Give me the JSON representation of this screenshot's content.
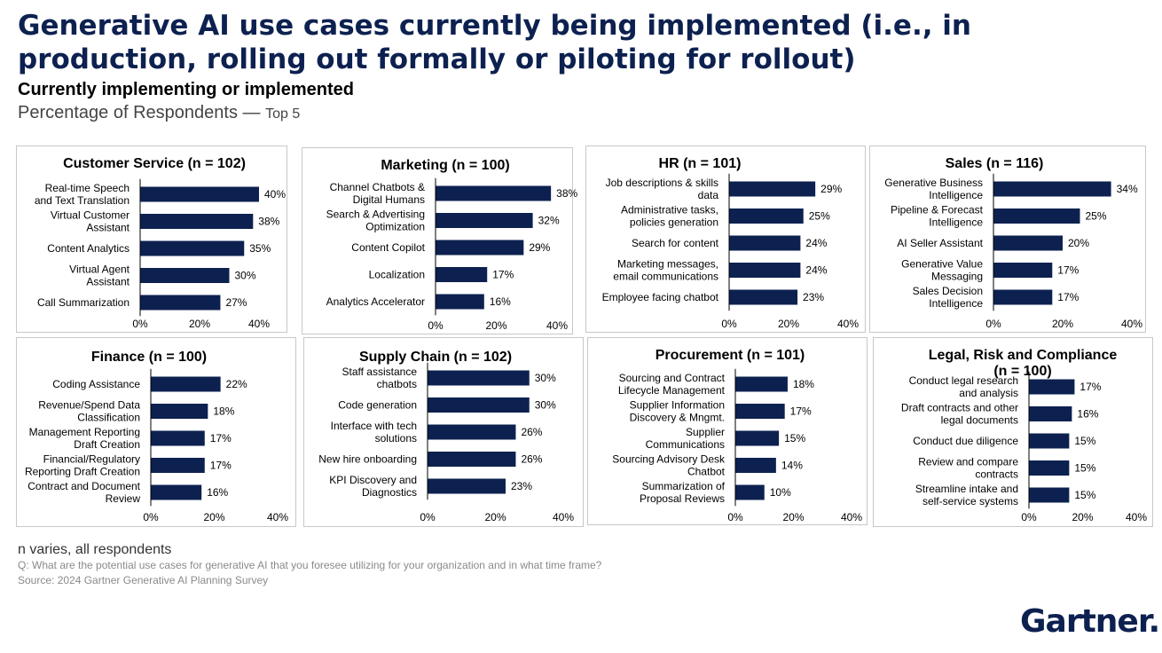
{
  "header": {
    "title": "Generative AI use cases currently being implemented (i.e., in production, rolling out formally or piloting for rollout)",
    "subtitle": "Currently implementing or implemented",
    "measure": "Percentage of Respondents —",
    "measure_suffix": "Top 5"
  },
  "footer": {
    "n_note": "n varies, all respondents",
    "question": "Q: What are the potential use cases for generative AI that you foresee utilizing for your organization and in what time frame?",
    "source": "Source: 2024 Gartner Generative AI Planning Survey"
  },
  "logo": {
    "text": "Gartner",
    "dot": "."
  },
  "colors": {
    "bar": "#0d2150",
    "title": "#0d2150",
    "axis": "#000000"
  },
  "chart_data": [
    {
      "type": "bar",
      "orientation": "horizontal",
      "title": "Customer Service (n = 102)",
      "categories": [
        [
          "Real-time Speech",
          "and Text Translation"
        ],
        [
          "Virtual Customer",
          "Assistant"
        ],
        [
          "Content Analytics"
        ],
        [
          "Virtual Agent",
          "Assistant"
        ],
        [
          "Call Summarization"
        ]
      ],
      "values": [
        40,
        38,
        35,
        30,
        27
      ],
      "value_labels": [
        "40%",
        "38%",
        "35%",
        "30%",
        "27%"
      ],
      "xticks": [
        "0%",
        "20%",
        "40%"
      ],
      "xlim": [
        0,
        40
      ]
    },
    {
      "type": "bar",
      "orientation": "horizontal",
      "title": "Marketing  (n = 100)",
      "categories": [
        [
          "Channel Chatbots &",
          "Digital Humans"
        ],
        [
          "Search & Advertising",
          "Optimization"
        ],
        [
          "Content Copilot"
        ],
        [
          "Localization"
        ],
        [
          "Analytics Accelerator"
        ]
      ],
      "values": [
        38,
        32,
        29,
        17,
        16
      ],
      "value_labels": [
        "38%",
        "32%",
        "29%",
        "17%",
        "16%"
      ],
      "xticks": [
        "0%",
        "20%",
        "40%"
      ],
      "xlim": [
        0,
        40
      ]
    },
    {
      "type": "bar",
      "orientation": "horizontal",
      "title": "HR (n = 101)",
      "categories": [
        [
          "Job descriptions & skills",
          "data"
        ],
        [
          "Administrative tasks,",
          "policies generation"
        ],
        [
          "Search for content"
        ],
        [
          "Marketing messages,",
          "email communications"
        ],
        [
          "Employee facing chatbot"
        ]
      ],
      "values": [
        29,
        25,
        24,
        24,
        23
      ],
      "value_labels": [
        "29%",
        "25%",
        "24%",
        "24%",
        "23%"
      ],
      "xticks": [
        "0%",
        "20%",
        "40%"
      ],
      "xlim": [
        0,
        40
      ]
    },
    {
      "type": "bar",
      "orientation": "horizontal",
      "title": "Sales (n = 116)",
      "categories": [
        [
          "Generative Business",
          "Intelligence"
        ],
        [
          "Pipeline & Forecast",
          "Intelligence"
        ],
        [
          "AI Seller Assistant"
        ],
        [
          "Generative Value",
          "Messaging"
        ],
        [
          "Sales Decision",
          "Intelligence"
        ]
      ],
      "values": [
        34,
        25,
        20,
        17,
        17
      ],
      "value_labels": [
        "34%",
        "25%",
        "20%",
        "17%",
        "17%"
      ],
      "xticks": [
        "0%",
        "20%",
        "40%"
      ],
      "xlim": [
        0,
        40
      ]
    },
    {
      "type": "bar",
      "orientation": "horizontal",
      "title": "Finance (n = 100)",
      "categories": [
        [
          "Coding Assistance"
        ],
        [
          "Revenue/Spend Data",
          "Classification"
        ],
        [
          "Management Reporting",
          "Draft Creation"
        ],
        [
          "Financial/Regulatory",
          "Reporting Draft Creation"
        ],
        [
          "Contract and Document",
          "Review"
        ]
      ],
      "values": [
        22,
        18,
        17,
        17,
        16
      ],
      "value_labels": [
        "22%",
        "18%",
        "17%",
        "17%",
        "16%"
      ],
      "xticks": [
        "0%",
        "20%",
        "40%"
      ],
      "xlim": [
        0,
        40
      ]
    },
    {
      "type": "bar",
      "orientation": "horizontal",
      "title": "Supply Chain (n = 102)",
      "categories": [
        [
          "Staff assistance",
          "chatbots"
        ],
        [
          "Code generation"
        ],
        [
          "Interface with tech",
          "solutions"
        ],
        [
          "New hire onboarding"
        ],
        [
          "KPI Discovery and",
          "Diagnostics"
        ]
      ],
      "values": [
        30,
        30,
        26,
        26,
        23
      ],
      "value_labels": [
        "30%",
        "30%",
        "26%",
        "26%",
        "23%"
      ],
      "xticks": [
        "0%",
        "20%",
        "40%"
      ],
      "xlim": [
        0,
        40
      ]
    },
    {
      "type": "bar",
      "orientation": "horizontal",
      "title": "Procurement (n = 101)",
      "categories": [
        [
          "Sourcing and Contract",
          "Lifecycle Management"
        ],
        [
          "Supplier Information",
          "Discovery & Mngmt."
        ],
        [
          "Supplier",
          "Communications"
        ],
        [
          "Sourcing Advisory Desk",
          "Chatbot"
        ],
        [
          "Summarization of",
          "Proposal Reviews"
        ]
      ],
      "values": [
        18,
        17,
        15,
        14,
        10
      ],
      "value_labels": [
        "18%",
        "17%",
        "15%",
        "14%",
        "10%"
      ],
      "xticks": [
        "0%",
        "20%",
        "40%"
      ],
      "xlim": [
        0,
        40
      ]
    },
    {
      "type": "bar",
      "orientation": "horizontal",
      "title": [
        "Legal, Risk and Compliance",
        "(n = 100)"
      ],
      "categories": [
        [
          "Conduct legal research",
          "and analysis"
        ],
        [
          "Draft contracts and other",
          "legal documents"
        ],
        [
          "Conduct due diligence"
        ],
        [
          "Review and compare",
          "contracts"
        ],
        [
          "Streamline intake and",
          "self-service systems"
        ]
      ],
      "values": [
        17,
        16,
        15,
        15,
        15
      ],
      "value_labels": [
        "17%",
        "16%",
        "15%",
        "15%",
        "15%"
      ],
      "xticks": [
        "0%",
        "20%",
        "40%"
      ],
      "xlim": [
        0,
        40
      ]
    }
  ]
}
